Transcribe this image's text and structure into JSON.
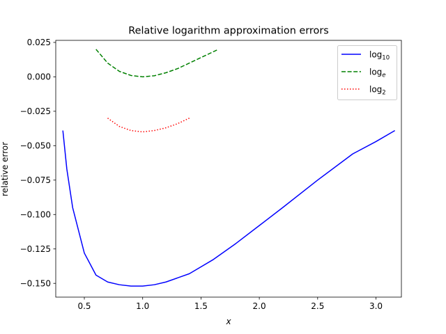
{
  "chart_data": {
    "type": "line",
    "title": "Relative logarithm approximation errors",
    "xlabel": "x",
    "ylabel": "relative error",
    "xlim": [
      0.255,
      3.218
    ],
    "ylim": [
      -0.16,
      0.0265
    ],
    "xticks": [
      0.5,
      1.0,
      1.5,
      2.0,
      2.5,
      3.0
    ],
    "xtick_labels": [
      "0.5",
      "1.0",
      "1.5",
      "2.0",
      "2.5",
      "3.0"
    ],
    "yticks": [
      0.025,
      0.0,
      -0.025,
      -0.05,
      -0.075,
      -0.1,
      -0.125,
      -0.15
    ],
    "ytick_labels": [
      "0.025",
      "0.000",
      "−0.025",
      "−0.050",
      "−0.075",
      "−0.100",
      "−0.125",
      "−0.150"
    ],
    "grid": false,
    "legend_position": "top-right",
    "series": [
      {
        "name": "log10",
        "legend_base": "log",
        "legend_sub": "10",
        "color": "#0000ff",
        "style": "solid",
        "x": [
          0.316,
          0.35,
          0.4,
          0.5,
          0.6,
          0.7,
          0.8,
          0.9,
          1.0,
          1.1,
          1.2,
          1.4,
          1.6,
          1.8,
          2.0,
          2.2,
          2.5,
          2.8,
          3.0,
          3.162
        ],
        "y": [
          -0.039,
          -0.067,
          -0.095,
          -0.128,
          -0.144,
          -0.149,
          -0.151,
          -0.152,
          -0.152,
          -0.151,
          -0.149,
          -0.143,
          -0.133,
          -0.121,
          -0.108,
          -0.095,
          -0.075,
          -0.056,
          -0.047,
          -0.039
        ]
      },
      {
        "name": "loge",
        "legend_base": "log",
        "legend_sub": "e",
        "color": "#008000",
        "style": "dashed",
        "x": [
          0.6,
          0.7,
          0.8,
          0.9,
          1.0,
          1.1,
          1.2,
          1.3,
          1.4,
          1.5,
          1.65
        ],
        "y": [
          0.02,
          0.01,
          0.004,
          0.001,
          0.0,
          0.0008,
          0.003,
          0.006,
          0.01,
          0.014,
          0.02
        ]
      },
      {
        "name": "log2",
        "legend_base": "log",
        "legend_sub": "2",
        "color": "#ff0000",
        "style": "dotted",
        "x": [
          0.7,
          0.8,
          0.9,
          1.0,
          1.1,
          1.2,
          1.3,
          1.4
        ],
        "y": [
          -0.03,
          -0.036,
          -0.039,
          -0.04,
          -0.039,
          -0.037,
          -0.034,
          -0.03
        ]
      }
    ]
  }
}
